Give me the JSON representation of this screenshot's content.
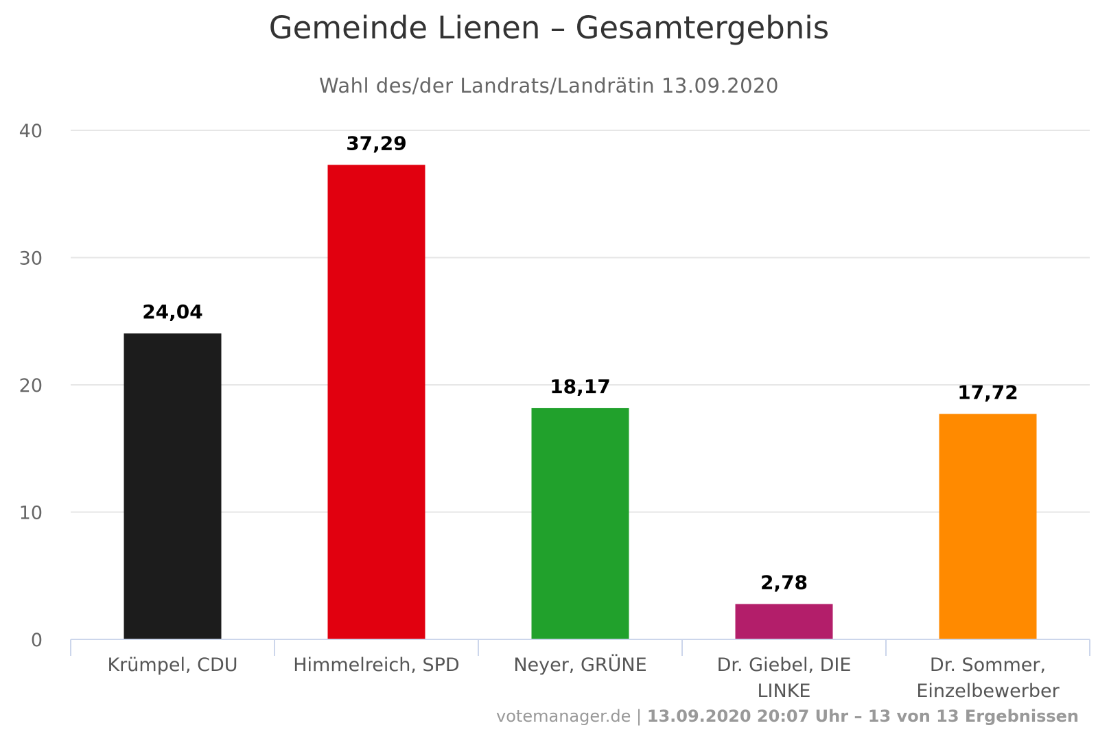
{
  "chart_data": {
    "type": "bar",
    "title": "Gemeinde Lienen – Gesamtergebnis",
    "subtitle": "Wahl des/der Landrats/Landrätin 13.09.2020",
    "xlabel": "",
    "ylabel": "",
    "categories": [
      [
        "Krümpel, CDU"
      ],
      [
        "Himmelreich, SPD"
      ],
      [
        "Neyer, GRÜNE"
      ],
      [
        "Dr. Giebel, DIE",
        "LINKE"
      ],
      [
        "Dr. Sommer,",
        "Einzelbewerber"
      ]
    ],
    "values": [
      24.04,
      37.29,
      18.17,
      2.78,
      17.72
    ],
    "value_labels": [
      "24,04",
      "37,29",
      "18,17",
      "2,78",
      "17,72"
    ],
    "colors": [
      "#1c1c1c",
      "#e1000f",
      "#21a12c",
      "#b31e6a",
      "#ff8a00"
    ],
    "ylim": [
      0,
      40
    ],
    "yticks": [
      0,
      10,
      20,
      30,
      40
    ],
    "grid": true,
    "legend": "none"
  },
  "credits": {
    "source": "votemanager.de",
    "separator": " | ",
    "info": "13.09.2020 20:07 Uhr – 13 von 13 Ergebnissen"
  }
}
